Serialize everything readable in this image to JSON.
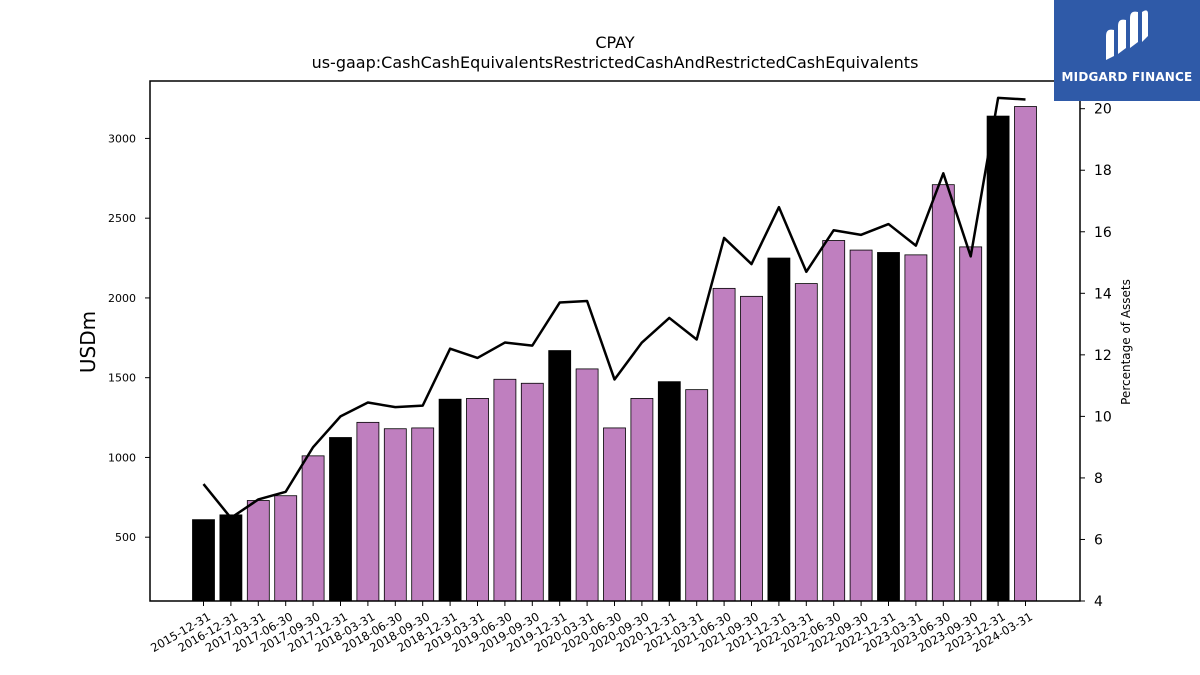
{
  "brand": {
    "name": "MIDGARD FINANCE",
    "color": "#2f5aa8"
  },
  "chart_data": {
    "type": "bar",
    "title": "CPAY",
    "subtitle": "us-gaap:CashCashEquivalentsRestrictedCashAndRestrictedCashEquivalents",
    "ylabel": "USDm",
    "y2label": "Percentage of Assets",
    "ylim": [
      100,
      3360
    ],
    "y2lim": [
      4,
      20.9
    ],
    "yticks": [
      500,
      1000,
      1500,
      2000,
      2500,
      3000
    ],
    "y2ticks": [
      4,
      6,
      8,
      10,
      12,
      14,
      16,
      18,
      20
    ],
    "grid": false,
    "colors": {
      "annual": "#000000",
      "quarterly": "#bf7fbf",
      "line": "#000000"
    },
    "categories": [
      "2015-12-31",
      "2016-12-31",
      "2017-03-31",
      "2017-06-30",
      "2017-09-30",
      "2017-12-31",
      "2018-03-31",
      "2018-06-30",
      "2018-09-30",
      "2018-12-31",
      "2019-03-31",
      "2019-06-30",
      "2019-09-30",
      "2019-12-31",
      "2020-03-31",
      "2020-06-30",
      "2020-09-30",
      "2020-12-31",
      "2021-03-31",
      "2021-06-30",
      "2021-09-30",
      "2021-12-31",
      "2022-03-31",
      "2022-06-30",
      "2022-09-30",
      "2022-12-31",
      "2023-03-31",
      "2023-06-30",
      "2023-09-30",
      "2023-12-31",
      "2024-03-31"
    ],
    "series": [
      {
        "type": "bar",
        "values": [
          610,
          640,
          730,
          760,
          1010,
          1125,
          1220,
          1180,
          1185,
          1365,
          1370,
          1490,
          1465,
          1670,
          1555,
          1185,
          1370,
          1475,
          1425,
          2060,
          2010,
          2250,
          2090,
          2360,
          2300,
          2285,
          2270,
          2710,
          2320,
          3140,
          3200
        ],
        "annual": [
          true,
          true,
          false,
          false,
          false,
          true,
          false,
          false,
          false,
          true,
          false,
          false,
          false,
          true,
          false,
          false,
          false,
          true,
          false,
          false,
          false,
          true,
          false,
          false,
          false,
          true,
          false,
          false,
          false,
          true,
          false
        ]
      },
      {
        "type": "line",
        "axis": "right",
        "values": [
          7.8,
          6.7,
          7.3,
          7.55,
          9.0,
          10.0,
          10.45,
          10.3,
          10.35,
          12.2,
          11.9,
          12.4,
          12.3,
          13.7,
          13.75,
          11.2,
          12.4,
          13.2,
          12.5,
          15.8,
          14.95,
          16.8,
          14.7,
          16.05,
          15.9,
          16.25,
          15.55,
          17.9,
          15.2,
          20.35,
          20.3
        ]
      }
    ]
  }
}
